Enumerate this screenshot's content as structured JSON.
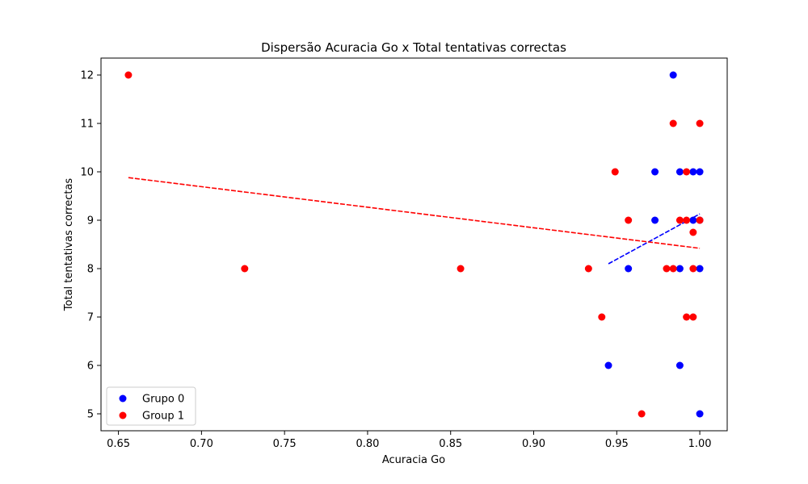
{
  "chart_data": {
    "type": "scatter",
    "title": "Dispersão Acuracia Go x Total tentativas correctas",
    "xlabel": "Acuracia Go",
    "ylabel": "Total tentativas correctas",
    "xlim": [
      0.6395,
      1.0165
    ],
    "ylim": [
      4.65,
      12.35
    ],
    "xticks": [
      0.65,
      0.7,
      0.75,
      0.8,
      0.85,
      0.9,
      0.95,
      1.0
    ],
    "xtick_labels": [
      "0.65",
      "0.70",
      "0.75",
      "0.80",
      "0.85",
      "0.90",
      "0.95",
      "1.00"
    ],
    "yticks": [
      5,
      6,
      7,
      8,
      9,
      10,
      11,
      12
    ],
    "ytick_labels": [
      "5",
      "6",
      "7",
      "8",
      "9",
      "10",
      "11",
      "12"
    ],
    "grid": false,
    "legend_position": "lower-left",
    "series": [
      {
        "name": "Grupo 0",
        "color": "#0000ff",
        "points": [
          [
            0.984,
            12
          ],
          [
            0.973,
            10
          ],
          [
            0.988,
            10
          ],
          [
            0.996,
            10
          ],
          [
            1.0,
            10
          ],
          [
            0.973,
            9
          ],
          [
            0.996,
            9
          ],
          [
            1.0,
            9
          ],
          [
            0.957,
            8
          ],
          [
            0.988,
            8
          ],
          [
            1.0,
            8
          ],
          [
            0.945,
            6
          ],
          [
            0.988,
            6
          ],
          [
            1.0,
            5
          ]
        ],
        "trend_line": {
          "style": "dashed",
          "x": [
            0.945,
            1.0
          ],
          "y": [
            8.1,
            9.13
          ]
        }
      },
      {
        "name": "Group 1",
        "color": "#ff0000",
        "points": [
          [
            0.656,
            12
          ],
          [
            0.984,
            11
          ],
          [
            1.0,
            11
          ],
          [
            0.949,
            10
          ],
          [
            0.992,
            10
          ],
          [
            0.957,
            9
          ],
          [
            0.988,
            9
          ],
          [
            0.992,
            9
          ],
          [
            1.0,
            9
          ],
          [
            0.996,
            8.75
          ],
          [
            0.726,
            8
          ],
          [
            0.856,
            8
          ],
          [
            0.933,
            8
          ],
          [
            0.98,
            8
          ],
          [
            0.984,
            8
          ],
          [
            0.996,
            8
          ],
          [
            0.941,
            7
          ],
          [
            0.992,
            7
          ],
          [
            0.996,
            7
          ],
          [
            0.965,
            5
          ]
        ],
        "trend_line": {
          "style": "dashed",
          "x": [
            0.656,
            1.0
          ],
          "y": [
            9.88,
            8.42
          ]
        }
      }
    ]
  }
}
